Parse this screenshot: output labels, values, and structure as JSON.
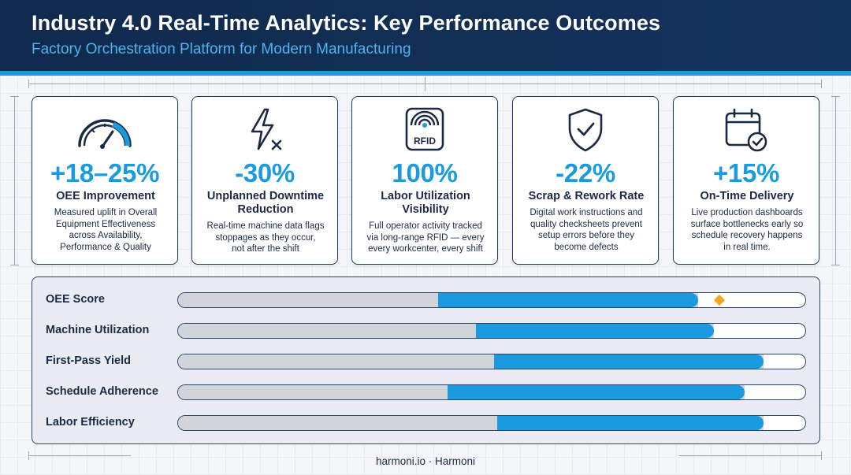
{
  "header": {
    "title": "Industry 4.0 Real-Time Analytics: Key Performance Outcomes",
    "subtitle": "Factory Orchestration Platform for Modern Manufacturing"
  },
  "colors": {
    "accent": "#1a9be0",
    "header_bg": "#0f2a4d",
    "marker": "#f5a623",
    "bar_base": "#d1d4d9"
  },
  "cards": [
    {
      "icon": "gauge-icon",
      "value": "+18–25%",
      "label_lines": [
        "OEE Improvement"
      ],
      "desc_lines": [
        "Measured uplift in Overall",
        "Equipment Effectiveness",
        "across Availability,",
        "Performance & Quality"
      ]
    },
    {
      "icon": "lightning-off-icon",
      "value": "-30%",
      "label_lines": [
        "Unplanned Downtime",
        "Reduction"
      ],
      "desc_lines": [
        "Real-time machine data flags",
        "stoppages as they occur,",
        "not after the shift"
      ]
    },
    {
      "icon": "rfid-icon",
      "icon_text": "RFID",
      "value": "100%",
      "label_lines": [
        "Labor Utilization",
        "Visibility"
      ],
      "desc_lines": [
        "Full operator activity tracked",
        "via long-range RFID — every",
        "every workcenter, every shift"
      ]
    },
    {
      "icon": "shield-check-icon",
      "value": "-22%",
      "label_lines": [
        "Scrap & Rework Rate"
      ],
      "desc_lines": [
        "Digital work instructions and",
        "quality checksheets prevent",
        "setup errors before they",
        "become defects"
      ]
    },
    {
      "icon": "calendar-check-icon",
      "value": "+15%",
      "label_lines": [
        "On-Time Delivery"
      ],
      "desc_lines": [
        "Live production dashboards",
        "surface bottlenecks early so",
        "schedule recovery happens",
        "in real time."
      ]
    }
  ],
  "bars": [
    {
      "label": "OEE Score",
      "base": 0.415,
      "fill": 0.83,
      "marker": 0.865
    },
    {
      "label": "Machine Utilization",
      "base": 0.475,
      "fill": 0.855
    },
    {
      "label": "First-Pass Yield",
      "base": 0.505,
      "fill": 0.935
    },
    {
      "label": "Schedule Adherence",
      "base": 0.43,
      "fill": 0.905
    },
    {
      "label": "Labor Efficiency",
      "base": 0.51,
      "fill": 0.935
    }
  ],
  "footer": {
    "text": "harmoni.io · Harmoni"
  }
}
